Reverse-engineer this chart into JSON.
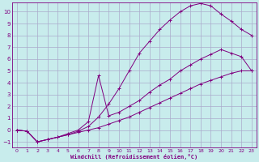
{
  "xlabel": "Windchill (Refroidissement éolien,°C)",
  "background_color": "#c8ecec",
  "grid_color": "#aaaacc",
  "line_color": "#800080",
  "xlim": [
    -0.5,
    23.5
  ],
  "ylim": [
    -1.5,
    10.8
  ],
  "xticks": [
    0,
    1,
    2,
    3,
    4,
    5,
    6,
    7,
    8,
    9,
    10,
    11,
    12,
    13,
    14,
    15,
    16,
    17,
    18,
    19,
    20,
    21,
    22,
    23
  ],
  "yticks": [
    -1,
    0,
    1,
    2,
    3,
    4,
    5,
    6,
    7,
    8,
    9,
    10
  ],
  "line1_x": [
    0,
    1,
    2,
    3,
    4,
    5,
    6,
    7,
    8,
    9,
    10,
    11,
    12,
    13,
    14,
    15,
    16,
    17,
    18,
    19,
    20,
    21,
    22,
    23
  ],
  "line1_y": [
    0.0,
    -0.1,
    -1.0,
    -0.8,
    -0.6,
    -0.4,
    -0.2,
    0.0,
    0.2,
    0.5,
    0.8,
    1.1,
    1.5,
    1.9,
    2.3,
    2.7,
    3.1,
    3.5,
    3.9,
    4.2,
    4.5,
    4.8,
    5.0,
    5.0
  ],
  "line2_x": [
    0,
    1,
    2,
    3,
    4,
    5,
    6,
    7,
    8,
    9,
    10,
    11,
    12,
    13,
    14,
    15,
    16,
    17,
    18,
    19,
    20,
    21,
    22,
    23
  ],
  "line2_y": [
    0.0,
    -0.1,
    -1.0,
    -0.8,
    -0.6,
    -0.4,
    -0.1,
    0.3,
    1.1,
    2.2,
    3.5,
    5.0,
    6.5,
    7.5,
    8.5,
    9.3,
    10.0,
    10.5,
    10.7,
    10.5,
    9.8,
    9.2,
    8.5,
    8.0
  ],
  "line3_x": [
    0,
    1,
    2,
    3,
    4,
    5,
    6,
    7,
    8,
    9,
    10,
    11,
    12,
    13,
    14,
    15,
    16,
    17,
    18,
    19,
    20,
    21,
    22,
    23
  ],
  "line3_y": [
    0.0,
    -0.1,
    -1.0,
    -0.8,
    -0.6,
    -0.3,
    0.0,
    0.7,
    4.6,
    1.2,
    1.5,
    2.0,
    2.5,
    3.2,
    3.8,
    4.3,
    5.0,
    5.5,
    6.0,
    6.4,
    6.8,
    6.5,
    6.2,
    5.0
  ]
}
